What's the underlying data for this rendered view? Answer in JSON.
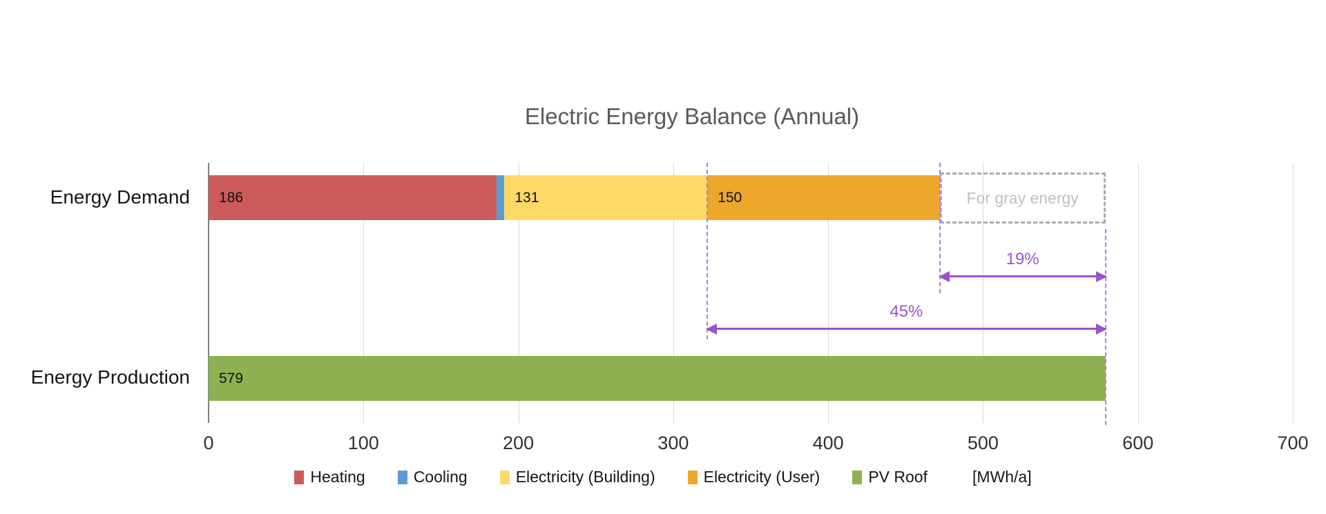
{
  "title": "Electric Energy Balance (Annual)",
  "chart_data": {
    "type": "bar",
    "orientation": "horizontal",
    "title": "Electric Energy Balance (Annual)",
    "xlabel_unit": "[MWh/a]",
    "xlim": [
      0,
      700
    ],
    "x_ticks": [
      0,
      100,
      200,
      300,
      400,
      500,
      600,
      700
    ],
    "grid": true,
    "rows": [
      {
        "label": "Energy Demand",
        "segments": [
          {
            "name": "Heating",
            "value": 186,
            "color": "#cb5a5a",
            "show_label": true
          },
          {
            "name": "Cooling",
            "value": 5,
            "color": "#5b9bd5",
            "show_label": false
          },
          {
            "name": "Electricity (Building)",
            "value": 131,
            "color": "#ffd965",
            "show_label": true
          },
          {
            "name": "Electricity (User)",
            "value": 150,
            "color": "#eea72d",
            "show_label": true
          }
        ]
      },
      {
        "label": "Energy Production",
        "segments": [
          {
            "name": "PV Roof",
            "value": 579,
            "color": "#8eb152",
            "show_label": true
          }
        ]
      }
    ],
    "gray_energy_box": {
      "label": "For gray energy",
      "from": 472,
      "to": 579
    },
    "annotations": [
      {
        "label": "19%",
        "from": 472,
        "to": 579
      },
      {
        "label": "45%",
        "from": 322,
        "to": 579
      }
    ],
    "guide_lines_x": [
      322,
      472,
      579
    ],
    "legend": [
      {
        "label": "Heating",
        "color": "#cb5a5a"
      },
      {
        "label": "Cooling",
        "color": "#5b9bd5"
      },
      {
        "label": "Electricity (Building)",
        "color": "#ffd965"
      },
      {
        "label": "Electricity (User)",
        "color": "#eea72d"
      },
      {
        "label": "PV Roof",
        "color": "#8eb152"
      }
    ],
    "legend_unit_label": "[MWh/a]"
  },
  "colors": {
    "title": "#595959",
    "gridline": "#d9d9d9",
    "axis": "#7f7f7f",
    "annotation_purple": "#9b51d0",
    "guide_purple": "#ae7cdd",
    "gray_box_border": "#ababab",
    "gray_box_text": "#bfbfbf"
  }
}
